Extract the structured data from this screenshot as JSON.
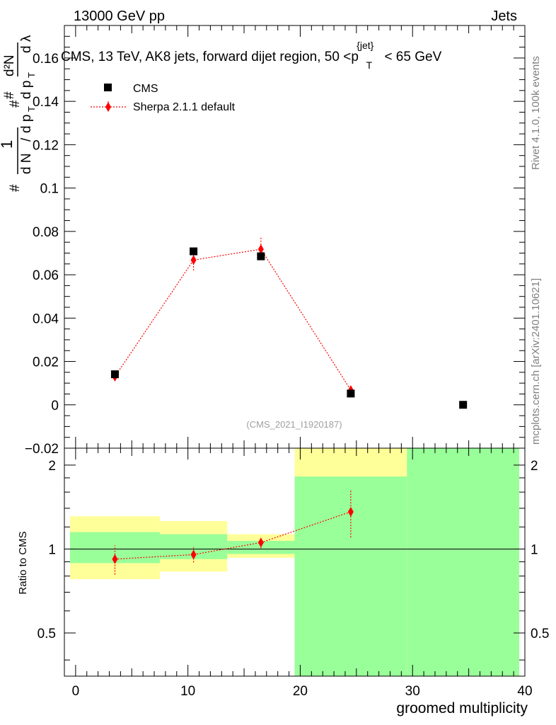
{
  "header": {
    "left": "13000 GeV pp",
    "right": "Jets"
  },
  "side_labels": {
    "rivet": "Rivet 4.1.0,  100k events",
    "mcplots": "mcplots.cern.ch [arXiv:2401.10621]"
  },
  "colors": {
    "cms": "#000000",
    "mc": "#ff0000",
    "band_green": "#99ff99",
    "band_yellow": "#ffff99",
    "annotation": "#a0a0a0"
  },
  "chart_data": [
    {
      "type": "scatter",
      "panel": "main",
      "title": "CMS, 13 TeV, AK8 jets, forward dijet region, 50 <p_T^{jet}< 65 GeV",
      "title_parts": {
        "pre": "CMS, 13 TeV, AK8 jets, forward dijet region, 50 <p",
        "sup": "{jet}",
        "sub": "T",
        "post": "< 65 GeV"
      },
      "ylabel_parts": {
        "hash1": "#",
        "one": "1",
        "dn": "d N",
        "slash": "/",
        "dpt": "d p",
        "t": "T",
        "hash2": "#",
        "d2n": "d²N",
        "dpt2": "d p",
        "t2": "T",
        "dlambda": "d λ",
        "hash3": "#"
      },
      "xlim": [
        -1,
        40
      ],
      "ylim": [
        -0.02,
        0.175
      ],
      "yticks": [
        -0.02,
        0,
        0.02,
        0.04,
        0.06,
        0.08,
        0.1,
        0.12,
        0.14,
        0.16
      ],
      "ytick_labels": [
        "−0.02",
        "0",
        "0.02",
        "0.04",
        "0.06",
        "0.08",
        "0.1",
        "0.12",
        "0.14",
        "0.16"
      ],
      "annotation": "(CMS_2021_I1920187)",
      "legend": [
        "CMS",
        "Sherpa 2.1.1 default"
      ],
      "series": [
        {
          "name": "CMS",
          "x": [
            3.5,
            10.5,
            16.5,
            24.5,
            34.5
          ],
          "y": [
            0.0141,
            0.0708,
            0.0685,
            0.0052,
            0.0
          ]
        },
        {
          "name": "Sherpa 2.1.1 default",
          "x": [
            3.5,
            10.5,
            16.5,
            24.5
          ],
          "y": [
            0.013,
            0.0668,
            0.0718,
            0.0068
          ],
          "err_lo": [
            0.0015,
            0.0048,
            0.0045,
            0.0011
          ],
          "err_hi": [
            0.0015,
            0.0048,
            0.0055,
            0.0011
          ]
        }
      ]
    },
    {
      "type": "scatter",
      "panel": "ratio",
      "ylabel": "Ratio to CMS",
      "xlabel": "groomed multiplicity",
      "xlim": [
        -1,
        40
      ],
      "ylim": [
        0.35,
        2.3
      ],
      "yscale": "log",
      "yticks": [
        0.5,
        1,
        2
      ],
      "ytick_labels": [
        "0.5",
        "1",
        "2"
      ],
      "xticks": [
        0,
        10,
        20,
        30,
        40
      ],
      "xtick_labels": [
        "0",
        "10",
        "20",
        "30",
        "40"
      ],
      "bands": [
        {
          "x": [
            -0.5,
            7.5
          ],
          "yellow": [
            0.78,
            1.31
          ],
          "green": [
            0.89,
            1.15
          ]
        },
        {
          "x": [
            7.5,
            13.5
          ],
          "yellow": [
            0.83,
            1.26
          ],
          "green": [
            0.92,
            1.13
          ]
        },
        {
          "x": [
            13.5,
            19.5
          ],
          "yellow": [
            0.93,
            1.13
          ],
          "green": [
            0.96,
            1.07
          ]
        },
        {
          "x": [
            19.5,
            29.5
          ],
          "yellow": [
            0.35,
            2.3
          ],
          "green": [
            0.35,
            1.82
          ]
        },
        {
          "x": [
            29.5,
            39.5
          ],
          "yellow": [
            0.35,
            2.3
          ],
          "green": [
            0.35,
            2.3
          ]
        }
      ],
      "series": [
        {
          "name": "Sherpa 2.1.1 default",
          "x": [
            3.5,
            10.5,
            16.5,
            24.5
          ],
          "y": [
            0.92,
            0.955,
            1.055,
            1.36
          ],
          "err_lo": [
            0.11,
            0.06,
            0.05,
            0.26
          ],
          "err_hi": [
            0.11,
            0.06,
            0.05,
            0.26
          ]
        }
      ]
    }
  ]
}
